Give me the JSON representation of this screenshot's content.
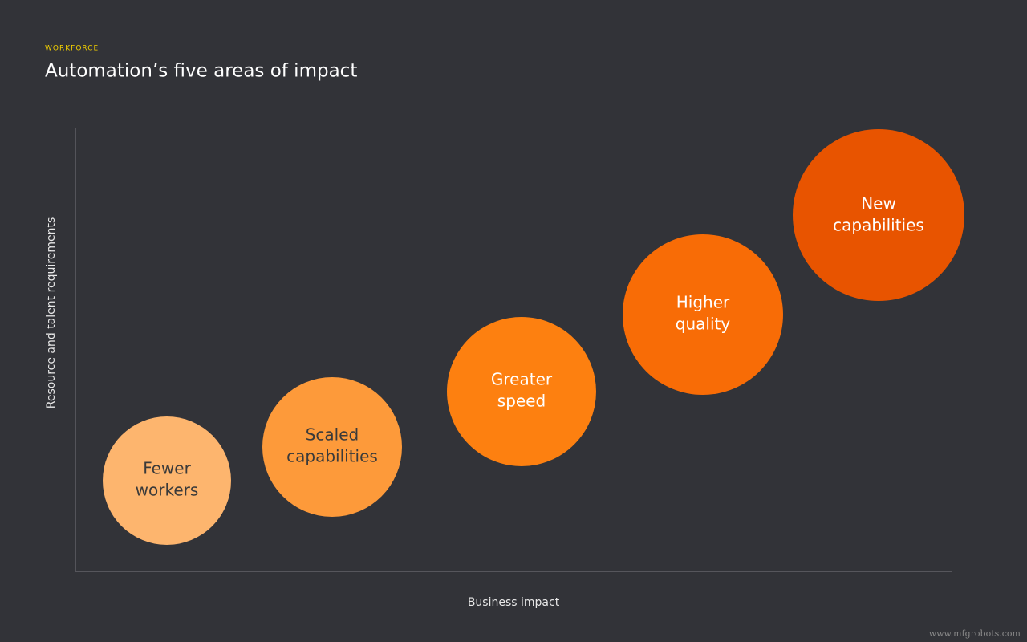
{
  "header": {
    "eyebrow": "WORKFORCE",
    "title": "Automation’s five areas of impact"
  },
  "axes": {
    "y_label": "Resource and talent requirements",
    "x_label": "Business impact"
  },
  "nodes": [
    {
      "lines": [
        "Fewer",
        "workers"
      ]
    },
    {
      "lines": [
        "Scaled",
        "capabilities"
      ]
    },
    {
      "lines": [
        "Greater",
        "speed"
      ]
    },
    {
      "lines": [
        "Higher",
        "quality"
      ]
    },
    {
      "lines": [
        "New",
        "capabilities"
      ]
    }
  ],
  "watermark": "www.mfgrobots.com"
}
